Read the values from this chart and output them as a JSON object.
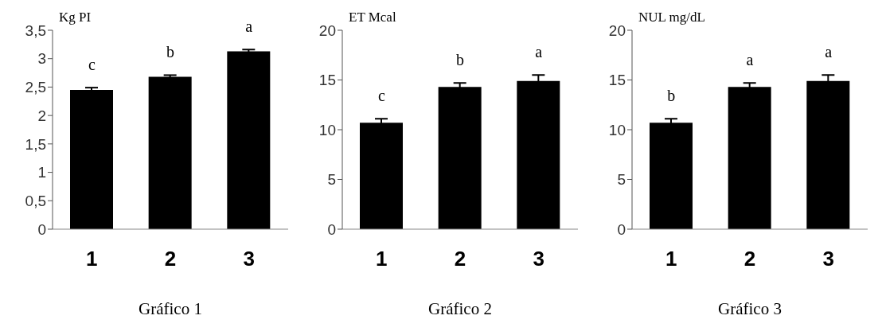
{
  "chart_data": [
    {
      "type": "bar",
      "title": "Gráfico 1",
      "ylabel": "Kg PI",
      "categories": [
        "1",
        "2",
        "3"
      ],
      "values": [
        2.45,
        2.68,
        3.13
      ],
      "errors": [
        0.04,
        0.03,
        0.03
      ],
      "color": "#000000",
      "ylim": [
        0,
        3.5
      ],
      "yticks": [
        {
          "value": 0,
          "label": "0"
        },
        {
          "value": 0.5,
          "label": "0,5"
        },
        {
          "value": 1,
          "label": "1"
        },
        {
          "value": 1.5,
          "label": "1,5"
        },
        {
          "value": 2,
          "label": "2"
        },
        {
          "value": 2.5,
          "label": "2,5"
        },
        {
          "value": 3,
          "label": "3"
        },
        {
          "value": 3.5,
          "label": "3,5"
        }
      ],
      "grid": false,
      "annotations": [
        "c",
        "b",
        "a"
      ]
    },
    {
      "type": "bar",
      "title": "Gráfico 2",
      "ylabel": "ET Mcal",
      "categories": [
        "1",
        "2",
        "3"
      ],
      "values": [
        10.7,
        14.3,
        14.9
      ],
      "errors": [
        0.4,
        0.4,
        0.6
      ],
      "color": "#000000",
      "ylim": [
        0,
        20
      ],
      "yticks": [
        0,
        5,
        10,
        15,
        20
      ],
      "grid": false,
      "annotations": [
        "c",
        "b",
        "a"
      ]
    },
    {
      "type": "bar",
      "title": "Gráfico 3",
      "ylabel": "NUL mg/dL",
      "categories": [
        "1",
        "2",
        "3"
      ],
      "values": [
        10.7,
        14.3,
        14.9
      ],
      "errors": [
        0.4,
        0.4,
        0.6
      ],
      "color": "#000000",
      "ylim": [
        0,
        20
      ],
      "yticks": [
        0,
        5,
        10,
        15,
        20
      ],
      "grid": false,
      "annotations": [
        "b",
        "a",
        "a"
      ]
    }
  ]
}
